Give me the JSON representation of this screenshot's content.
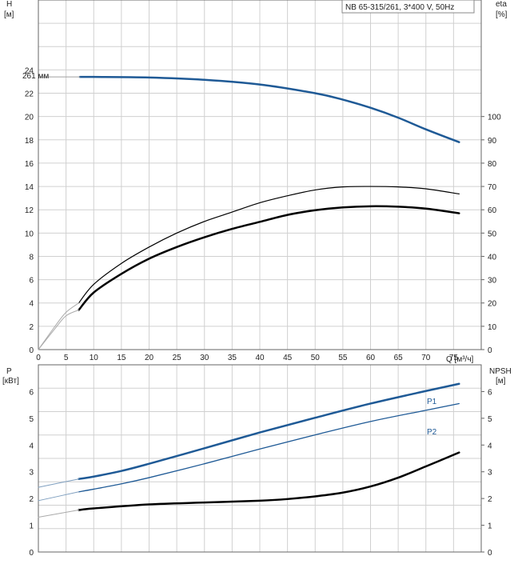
{
  "chart_data": [
    {
      "type": "line",
      "title": "NB 65-315/261, 3*400 V, 50Hz",
      "xlabel": "Q [м³/ч]",
      "ylabel_left": "H",
      "ylabel_left_unit": "[м]",
      "ylabel_right": "eta",
      "ylabel_right_unit": "[%]",
      "xlim": [
        0,
        80
      ],
      "ylim_left": [
        0,
        30
      ],
      "ylim_right": [
        0,
        150
      ],
      "x_ticks": [
        0,
        5,
        10,
        15,
        20,
        25,
        30,
        35,
        40,
        45,
        50,
        55,
        60,
        65,
        70,
        75
      ],
      "y_ticks_left": [
        0,
        2,
        4,
        6,
        8,
        10,
        12,
        14,
        16,
        18,
        20,
        22,
        24
      ],
      "y_ticks_right": [
        0,
        10,
        20,
        30,
        40,
        50,
        60,
        70,
        80,
        90,
        100
      ],
      "grid": true,
      "annotations": [
        {
          "text": "261 мм",
          "x": 7,
          "y": 23.4
        }
      ],
      "series": [
        {
          "name": "261 мм",
          "axis": "left",
          "color": "#1f5a96",
          "width": 2.5,
          "x": [
            7.5,
            10,
            20,
            30,
            40,
            50,
            55,
            60,
            65,
            70,
            76
          ],
          "y": [
            23.4,
            23.4,
            23.35,
            23.15,
            22.75,
            22.0,
            21.45,
            20.75,
            19.9,
            18.9,
            17.8
          ]
        },
        {
          "axis": "left",
          "color": "#a0a0a0",
          "width": 1,
          "x": [
            0,
            7.5
          ],
          "y": [
            23.4,
            23.4
          ]
        },
        {
          "axis": "right",
          "color": "#000000",
          "width": 2.5,
          "x": [
            7.3,
            10,
            15,
            20,
            25,
            30,
            35,
            40,
            45,
            50,
            55,
            60,
            65,
            70,
            76
          ],
          "y": [
            17,
            24.5,
            32.5,
            39,
            44,
            48.2,
            51.8,
            54.8,
            57.8,
            59.8,
            61,
            61.5,
            61.3,
            60.5,
            58.5
          ]
        },
        {
          "axis": "right",
          "color": "#000000",
          "width": 1.2,
          "x": [
            7.3,
            10,
            15,
            20,
            25,
            30,
            35,
            40,
            45,
            50,
            55,
            60,
            65,
            70,
            76
          ],
          "y": [
            20,
            28,
            37,
            44,
            50,
            55,
            59,
            63,
            66,
            68.5,
            69.8,
            70,
            69.8,
            69,
            66.8
          ]
        },
        {
          "axis": "right",
          "color": "#aaaaaa",
          "width": 1,
          "x": [
            0,
            3,
            5,
            7.3
          ],
          "y": [
            0,
            9,
            14.5,
            17
          ]
        },
        {
          "axis": "right",
          "color": "#aaaaaa",
          "width": 1,
          "x": [
            0,
            3,
            5,
            7.3
          ],
          "y": [
            0,
            10,
            16,
            20
          ]
        }
      ]
    },
    {
      "type": "line",
      "ylabel_left": "P",
      "ylabel_left_unit": "[кВт]",
      "ylabel_right": "NPSH",
      "ylabel_right_unit": "[м]",
      "xlim": [
        0,
        80
      ],
      "ylim_left": [
        0,
        7
      ],
      "ylim_right": [
        0,
        7
      ],
      "y_ticks_left": [
        0,
        1,
        2,
        3,
        4,
        5,
        6
      ],
      "y_ticks_right": [
        0,
        1,
        2,
        3,
        4,
        5,
        6
      ],
      "grid": true,
      "series": [
        {
          "name": "P1",
          "axis": "left",
          "color": "#1f5a96",
          "width": 2.5,
          "x": [
            7.3,
            10,
            15,
            20,
            30,
            40,
            50,
            60,
            70,
            76
          ],
          "y": [
            2.73,
            2.82,
            3.03,
            3.3,
            3.88,
            4.47,
            5.02,
            5.55,
            6.02,
            6.29
          ]
        },
        {
          "name": "P2",
          "axis": "left",
          "color": "#1f5a96",
          "width": 1.3,
          "x": [
            7.3,
            10,
            15,
            20,
            30,
            40,
            50,
            60,
            70,
            76
          ],
          "y": [
            2.25,
            2.35,
            2.55,
            2.78,
            3.3,
            3.85,
            4.38,
            4.88,
            5.3,
            5.55
          ]
        },
        {
          "axis": "left",
          "color": "#7f9fbf",
          "width": 1,
          "x": [
            0,
            7.3
          ],
          "y": [
            2.42,
            2.73
          ]
        },
        {
          "axis": "left",
          "color": "#7f9fbf",
          "width": 1,
          "x": [
            0,
            7.3
          ],
          "y": [
            1.92,
            2.25
          ]
        },
        {
          "axis": "right",
          "color": "#000000",
          "width": 2.5,
          "x": [
            7.3,
            10,
            20,
            30,
            40,
            45,
            50,
            55,
            60,
            65,
            70,
            76
          ],
          "y": [
            1.57,
            1.63,
            1.78,
            1.85,
            1.92,
            1.98,
            2.08,
            2.22,
            2.45,
            2.78,
            3.2,
            3.72
          ]
        },
        {
          "axis": "right",
          "color": "#aaaaaa",
          "width": 1,
          "x": [
            0,
            7.3
          ],
          "y": [
            1.3,
            1.57
          ]
        }
      ]
    }
  ]
}
